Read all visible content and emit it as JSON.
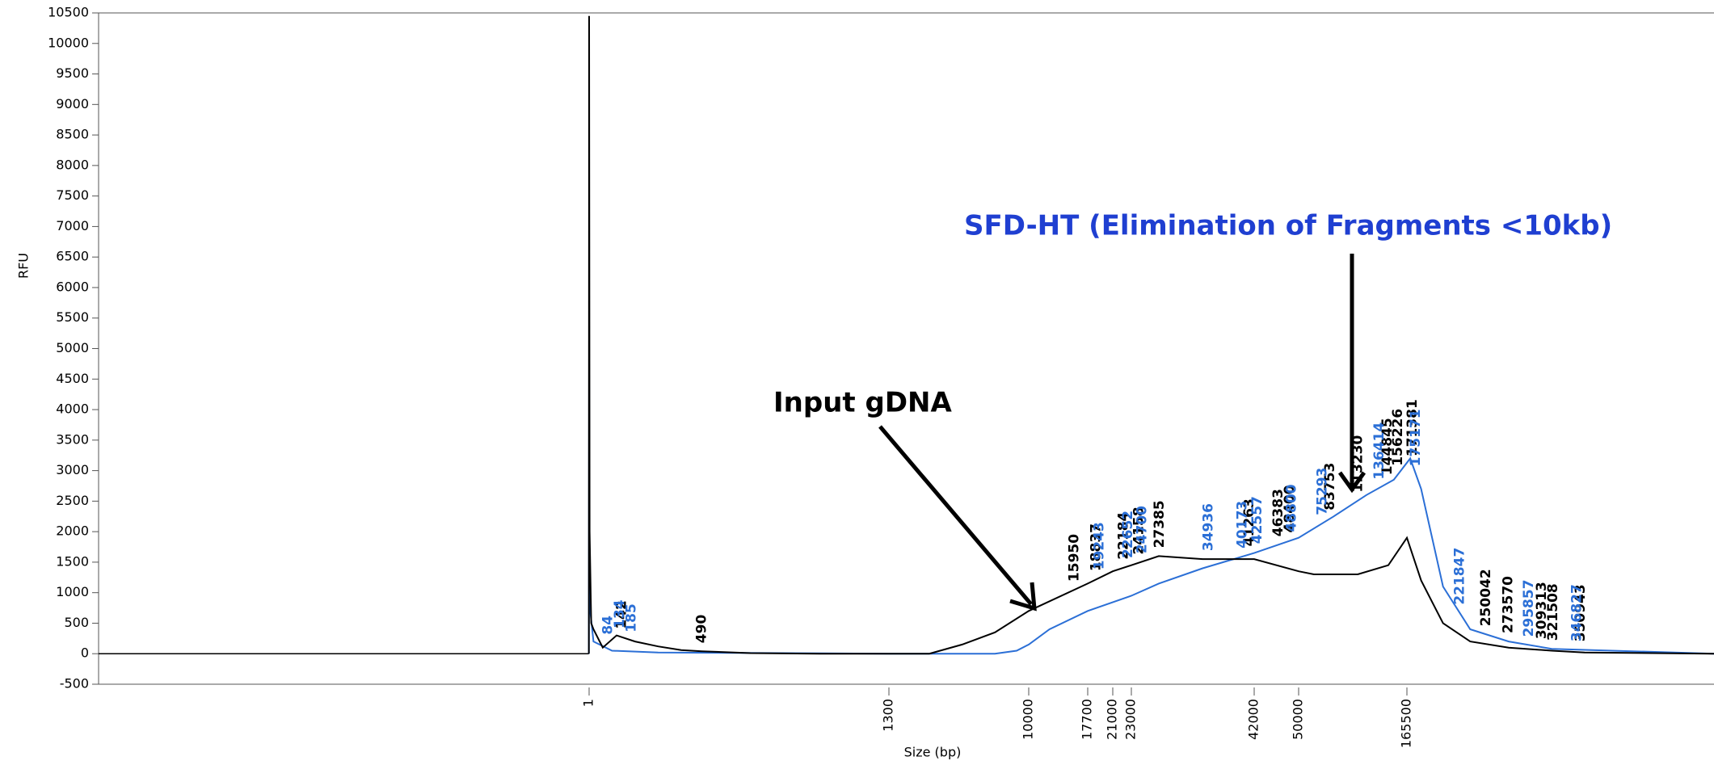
{
  "chart_data": {
    "type": "line",
    "ylabel": "RFU",
    "xlabel": "Size (bp)",
    "ylim": [
      -500,
      10500
    ],
    "yticks": [
      -500,
      0,
      500,
      1000,
      1500,
      2000,
      2500,
      3000,
      3500,
      4000,
      4500,
      5000,
      5500,
      6000,
      6500,
      7000,
      7500,
      8000,
      8500,
      9000,
      9500,
      10000,
      10500
    ],
    "xticks": [
      1,
      1300,
      10000,
      17700,
      21000,
      23000,
      42000,
      50000,
      165500
    ],
    "series": [
      {
        "color": "#000000",
        "x": [
          0,
          1,
          3,
          10,
          20,
          60,
          120,
          200,
          300,
          400,
          490,
          700,
          1000,
          1300,
          3816,
          5856,
          7896,
          10000,
          17700,
          21000,
          23000,
          27240,
          34030,
          42000,
          50000,
          66330,
          113000,
          145700,
          165500,
          180700,
          204000,
          233000,
          274000,
          320000,
          355000,
          493000
        ],
        "values": [
          0,
          10450,
          2000,
          500,
          400,
          100,
          300,
          200,
          120,
          60,
          40,
          10,
          0,
          0,
          0,
          150,
          350,
          700,
          1150,
          1350,
          1450,
          1600,
          1550,
          1550,
          1350,
          1300,
          1300,
          1450,
          1900,
          1200,
          500,
          200,
          100,
          50,
          20,
          0
        ],
        "peaks": [
          142,
          490,
          15950,
          18837,
          22184,
          24158,
          27385,
          41263,
          46383,
          48400,
          83753,
          113230,
          144845,
          156226,
          171381,
          250042,
          273570,
          309313,
          321508,
          350943
        ]
      },
      {
        "color": "#2b6fd6",
        "x": [
          0,
          1,
          3,
          20,
          100,
          300,
          1300,
          3816,
          7896,
          9250,
          10000,
          12710,
          17700,
          23000,
          27240,
          34030,
          42000,
          50000,
          87300,
          122300,
          151500,
          169000,
          180700,
          204000,
          233000,
          274000,
          320000,
          493000
        ],
        "values": [
          0,
          4650,
          800,
          200,
          50,
          20,
          0,
          0,
          0,
          50,
          150,
          400,
          700,
          950,
          1150,
          1400,
          1650,
          1900,
          2250,
          2600,
          2850,
          3200,
          2700,
          1100,
          400,
          200,
          80,
          0
        ],
        "peaks": [
          84,
          134,
          185,
          19243,
          22652,
          24700,
          34936,
          40173,
          42557,
          48800,
          75293,
          136414,
          175171,
          221847,
          295857,
          346827
        ]
      }
    ],
    "annotations": [
      {
        "text": "Input gDNA",
        "color": "#000000"
      },
      {
        "text": "SFD-HT (Elimination of Fragments <10kb)",
        "color": "#1f3fd1"
      }
    ]
  }
}
